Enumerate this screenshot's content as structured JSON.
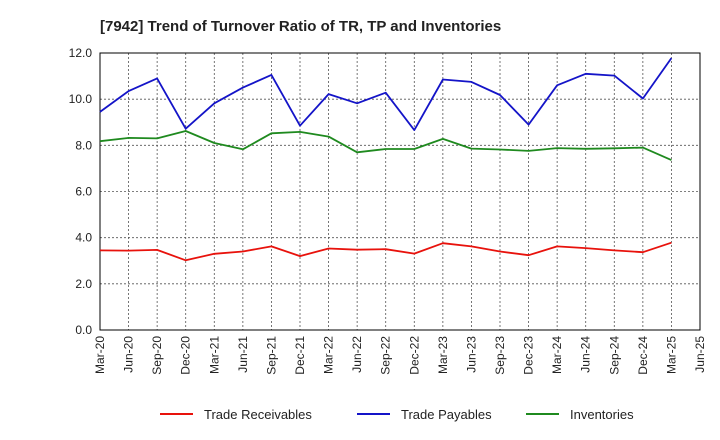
{
  "chart_data": {
    "type": "line",
    "title": "[7942]  Trend of Turnover Ratio of TR, TP and Inventories",
    "xlabel": "",
    "ylabel": "",
    "ylim": [
      0,
      12
    ],
    "yticks": [
      "0.0",
      "2.0",
      "4.0",
      "6.0",
      "8.0",
      "10.0",
      "12.0"
    ],
    "xtick_labels": [
      "Mar-20",
      "Jun-20",
      "Sep-20",
      "Dec-20",
      "Mar-21",
      "Jun-21",
      "Sep-21",
      "Dec-21",
      "Mar-22",
      "Jun-22",
      "Sep-22",
      "Dec-22",
      "Mar-23",
      "Jun-23",
      "Sep-23",
      "Dec-23",
      "Mar-24",
      "Jun-24",
      "Sep-24",
      "Dec-24",
      "Mar-25",
      "Jun-25"
    ],
    "x": [
      "Mar-20",
      "Jun-20",
      "Sep-20",
      "Dec-20",
      "Mar-21",
      "Jun-21",
      "Sep-21",
      "Dec-21",
      "Mar-22",
      "Jun-22",
      "Sep-22",
      "Dec-22",
      "Mar-23",
      "Jun-23",
      "Sep-23",
      "Dec-23",
      "Mar-24",
      "Jun-24",
      "Sep-24",
      "Dec-24",
      "Mar-25"
    ],
    "grid": true,
    "legend_position": "bottom",
    "series": [
      {
        "name": "Trade Receivables",
        "color": "#e8120c",
        "values": [
          3.45,
          3.44,
          3.47,
          3.02,
          3.3,
          3.4,
          3.62,
          3.2,
          3.53,
          3.48,
          3.5,
          3.31,
          3.76,
          3.62,
          3.4,
          3.24,
          3.62,
          3.55,
          3.45,
          3.37,
          3.78
        ]
      },
      {
        "name": "Trade Payables",
        "color": "#1414c8",
        "values": [
          9.45,
          10.35,
          10.9,
          8.72,
          9.82,
          10.5,
          11.05,
          8.85,
          10.22,
          9.82,
          10.28,
          8.66,
          10.85,
          10.75,
          10.18,
          8.9,
          10.6,
          11.1,
          11.02,
          10.03,
          11.78
        ]
      },
      {
        "name": "Inventories",
        "color": "#1f8a1f",
        "values": [
          8.18,
          8.32,
          8.3,
          8.62,
          8.1,
          7.83,
          8.52,
          8.58,
          8.38,
          7.7,
          7.84,
          7.84,
          8.28,
          7.86,
          7.82,
          7.76,
          7.88,
          7.85,
          7.87,
          7.9,
          7.36
        ]
      }
    ]
  }
}
